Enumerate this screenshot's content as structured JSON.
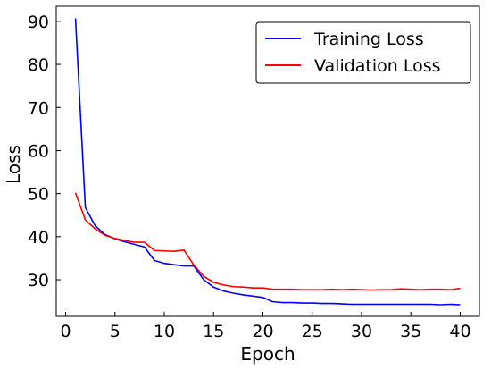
{
  "chart_data": {
    "type": "line",
    "xlabel": "Epoch",
    "ylabel": "Loss",
    "xlim": [
      -0.95,
      41.95
    ],
    "ylim": [
      21.5,
      93.5
    ],
    "xticks": [
      0,
      5,
      10,
      15,
      20,
      25,
      30,
      35,
      40
    ],
    "yticks": [
      30,
      40,
      50,
      60,
      70,
      80,
      90
    ],
    "grid": false,
    "legend_position": "top-right",
    "x": [
      1,
      2,
      3,
      4,
      5,
      6,
      7,
      8,
      9,
      10,
      11,
      12,
      13,
      14,
      15,
      16,
      17,
      18,
      19,
      20,
      21,
      22,
      23,
      24,
      25,
      26,
      27,
      28,
      29,
      30,
      31,
      32,
      33,
      34,
      35,
      36,
      37,
      38,
      39,
      40
    ],
    "series": [
      {
        "name": "Training Loss",
        "color": "#0000ff",
        "values": [
          90.7,
          46.8,
          42.5,
          40.5,
          39.5,
          38.8,
          38.2,
          37.6,
          34.5,
          33.8,
          33.5,
          33.2,
          33.2,
          30.0,
          28.3,
          27.4,
          26.9,
          26.5,
          26.2,
          25.9,
          24.9,
          24.7,
          24.7,
          24.6,
          24.6,
          24.5,
          24.5,
          24.4,
          24.3,
          24.3,
          24.3,
          24.3,
          24.3,
          24.3,
          24.3,
          24.3,
          24.3,
          24.2,
          24.3,
          24.2
        ]
      },
      {
        "name": "Validation Loss",
        "color": "#ff0000",
        "values": [
          50.2,
          43.9,
          41.8,
          40.3,
          39.6,
          39.1,
          38.7,
          38.7,
          36.8,
          36.7,
          36.6,
          36.9,
          33.4,
          30.8,
          29.4,
          28.8,
          28.4,
          28.3,
          28.1,
          28.1,
          27.8,
          27.8,
          27.8,
          27.7,
          27.7,
          27.7,
          27.8,
          27.7,
          27.8,
          27.7,
          27.6,
          27.7,
          27.7,
          27.9,
          27.8,
          27.7,
          27.8,
          27.8,
          27.7,
          28.0
        ]
      }
    ]
  }
}
